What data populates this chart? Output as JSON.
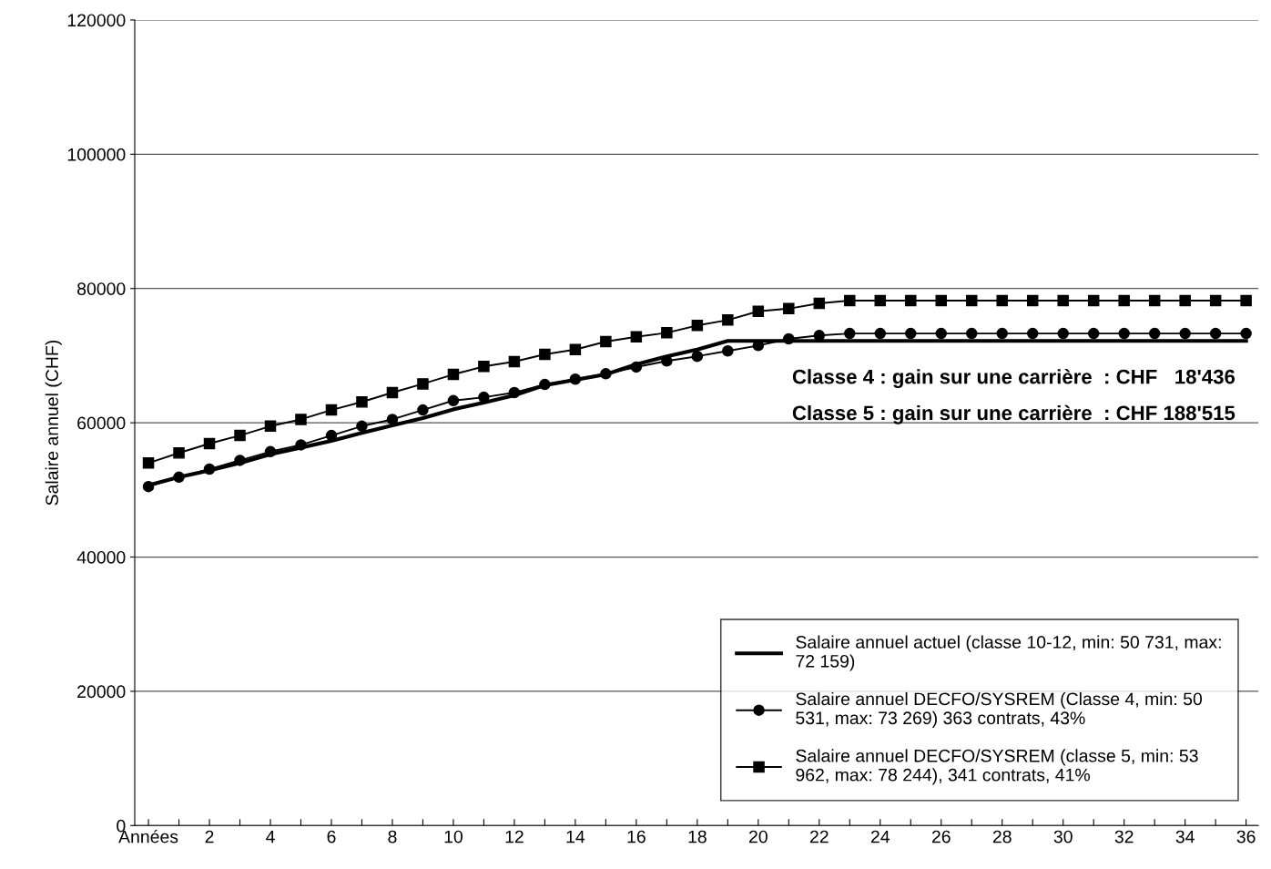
{
  "chart_data": {
    "type": "line",
    "ylabel": "Salaire annuel (CHF)",
    "categories": [
      "Années",
      null,
      "2",
      null,
      "4",
      null,
      "6",
      null,
      "8",
      null,
      "10",
      null,
      "12",
      null,
      "14",
      null,
      "16",
      null,
      "18",
      null,
      "20",
      null,
      "22",
      null,
      "24",
      null,
      "26",
      null,
      "28",
      null,
      "30",
      null,
      "32",
      null,
      "34",
      null,
      "36"
    ],
    "ylim": [
      0,
      120000
    ],
    "yticks": [
      0,
      20000,
      40000,
      60000,
      80000,
      100000,
      120000
    ],
    "grid": "y",
    "legend": "bottom right",
    "series": [
      {
        "name": "Salaire annuel actuel (classe 10-12, min: 50 731, max:\n72 159)",
        "color": "#000000",
        "marker": "none",
        "values": [
          50700,
          51900,
          52900,
          54000,
          55300,
          56300,
          57300,
          58500,
          59600,
          60700,
          62000,
          63000,
          64100,
          65600,
          66400,
          67200,
          68700,
          69900,
          70900,
          72200,
          72200,
          72200,
          72200,
          72200,
          72200,
          72200,
          72200,
          72200,
          72200,
          72200,
          72200,
          72200,
          72200,
          72200,
          72200,
          72200,
          72200
        ]
      },
      {
        "name": "Salaire annuel DECFO/SYSREM (Classe 4, min: 50\n531, max: 73 269) 363 contrats, 43%",
        "color": "#000000",
        "marker": "circle",
        "values": [
          50500,
          51900,
          53100,
          54400,
          55700,
          56700,
          58100,
          59500,
          60500,
          61900,
          63300,
          63800,
          64500,
          65700,
          66500,
          67300,
          68300,
          69200,
          69900,
          70700,
          71500,
          72500,
          73000,
          73300,
          73300,
          73300,
          73300,
          73300,
          73300,
          73300,
          73300,
          73300,
          73300,
          73300,
          73300,
          73300,
          73300
        ]
      },
      {
        "name": "Salaire annuel DECFO/SYSREM (classe 5, min: 53\n962, max: 78 244), 341 contrats, 41%",
        "color": "#000000",
        "marker": "square",
        "values": [
          54000,
          55500,
          56900,
          58100,
          59500,
          60500,
          61900,
          63100,
          64500,
          65800,
          67200,
          68400,
          69100,
          70200,
          70900,
          72100,
          72800,
          73400,
          74500,
          75300,
          76600,
          77000,
          77800,
          78200,
          78200,
          78200,
          78200,
          78200,
          78200,
          78200,
          78200,
          78200,
          78200,
          78200,
          78200,
          78200,
          78200
        ]
      }
    ],
    "annotations": [
      "Classe 4 : gain sur une carrière  : CHF   18'436",
      "Classe 5 : gain sur une carrière  : CHF 188'515"
    ]
  }
}
